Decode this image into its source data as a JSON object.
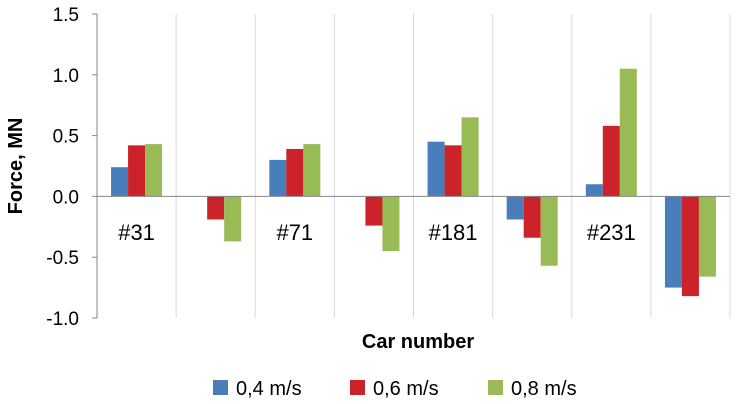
{
  "chart_data": {
    "type": "bar",
    "categories": [
      "#31",
      "",
      "#71",
      "",
      "#181",
      "",
      "#231",
      ""
    ],
    "series": [
      {
        "name": "0,4 m/s",
        "color": "#4a7ebb",
        "values": [
          0.24,
          0.0,
          0.3,
          0.0,
          0.45,
          -0.19,
          0.1,
          -0.75
        ]
      },
      {
        "name": "0,6 m/s",
        "color": "#cc2229",
        "values": [
          0.42,
          -0.19,
          0.39,
          -0.24,
          0.42,
          -0.34,
          0.58,
          -0.82
        ]
      },
      {
        "name": "0,8 m/s",
        "color": "#99bb55",
        "values": [
          0.43,
          -0.37,
          0.43,
          -0.45,
          0.65,
          -0.57,
          1.05,
          -0.66
        ]
      }
    ],
    "xlabel": "Car number",
    "ylabel": "Force, MN",
    "ylim": [
      -1.0,
      1.5
    ],
    "yticks": [
      "-1.0",
      "-0.5",
      "0.0",
      "0.5",
      "1.0",
      "1.5"
    ],
    "ytick_values": [
      -1.0,
      -0.5,
      0.0,
      0.5,
      1.0,
      1.5
    ],
    "grid": "vertical",
    "legend": "bottom"
  }
}
